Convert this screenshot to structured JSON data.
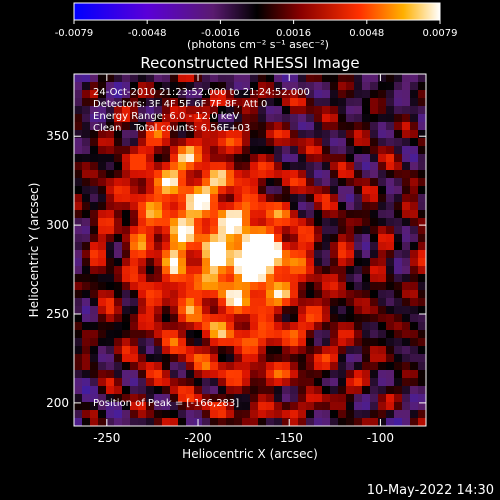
{
  "chart_data": {
    "type": "heatmap",
    "title": "Reconstructed RHESSI Image",
    "xlabel": "Heliocentric X (arcsec)",
    "ylabel": "Heliocentric Y (arcsec)",
    "xlim": [
      -268,
      -75
    ],
    "ylim": [
      187,
      385
    ],
    "xticks": [
      -250,
      -200,
      -150,
      -100
    ],
    "yticks": [
      200,
      250,
      300,
      350
    ],
    "colorbar": {
      "ticks": [
        "-0.0079",
        "-0.0048",
        "-0.0016",
        "0.0016",
        "0.0048",
        "0.0079"
      ],
      "range": [
        -0.0079,
        0.0079
      ],
      "units_line": "(photons cm⁻² s⁻¹ asec⁻²)"
    },
    "peak": {
      "x": -166,
      "y": 283
    },
    "colors": {
      "negative": "#4a1c9a",
      "zero": "#000000",
      "positive": "#ff2a00",
      "max": "#ffffff"
    }
  },
  "annotations": {
    "time_range": "24-Oct-2010 21:23:52.000 to 21:24:52.000",
    "detectors": "Detectors: 3F 4F 5F 6F 7F 8F, Att 0",
    "energy": "Energy Range: 6.0 - 12.0 keV",
    "clean": "Clean    Total counts: 6.56E+03",
    "peak_label": "Position of Peak = [-166,283]"
  },
  "footer": {
    "date": "10-May-2022 14:30"
  }
}
